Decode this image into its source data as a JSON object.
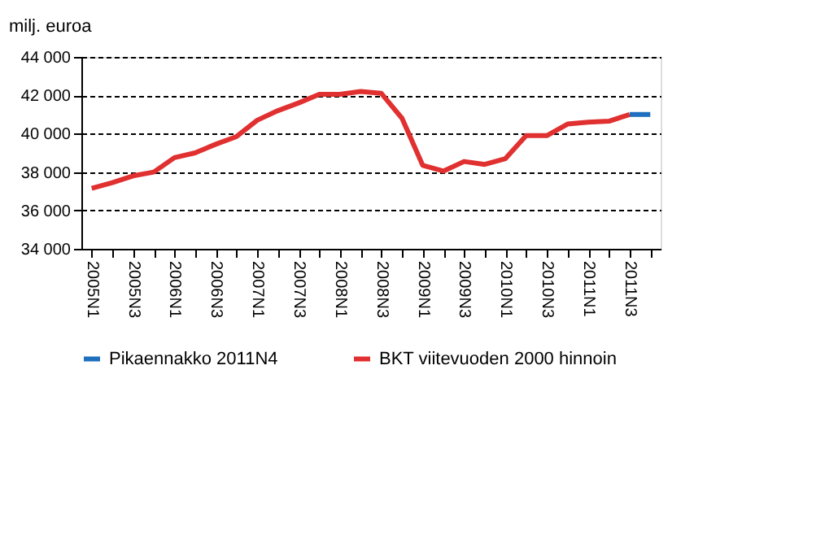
{
  "chart_data": {
    "type": "line",
    "ylabel": "milj. euroa",
    "categories": [
      "2005N1",
      null,
      "2005N3",
      null,
      "2006N1",
      null,
      "2006N3",
      null,
      "2007N1",
      null,
      "2007N3",
      null,
      "2008N1",
      null,
      "2008N3",
      null,
      "2009N1",
      null,
      "2009N3",
      null,
      "2010N1",
      null,
      "2010N3",
      null,
      "2011N1",
      null,
      "2011N3",
      null
    ],
    "series": [
      {
        "name": "Pikaennakko 2011N4",
        "color": "#1f6fbf",
        "values": [
          null,
          null,
          null,
          null,
          null,
          null,
          null,
          null,
          null,
          null,
          null,
          null,
          null,
          null,
          null,
          null,
          null,
          null,
          null,
          null,
          null,
          null,
          null,
          null,
          null,
          null,
          41000,
          41000
        ]
      },
      {
        "name": "BKT viitevuoden 2000 hinnoin",
        "color": "#e03030",
        "values": [
          37150,
          37450,
          37800,
          38000,
          38750,
          39000,
          39450,
          39850,
          40700,
          41200,
          41600,
          42050,
          42050,
          42200,
          42100,
          40800,
          38350,
          38050,
          38550,
          38400,
          38700,
          39900,
          39900,
          40500,
          40600,
          40650,
          41000,
          null
        ]
      }
    ],
    "ylim": [
      34000,
      44000
    ],
    "yticks": [
      {
        "value": 34000,
        "label": "34 000"
      },
      {
        "value": 36000,
        "label": "36 000"
      },
      {
        "value": 38000,
        "label": "38 000"
      },
      {
        "value": 40000,
        "label": "40 000"
      },
      {
        "value": 42000,
        "label": "42 000"
      },
      {
        "value": 44000,
        "label": "44 000"
      }
    ],
    "grid": "y",
    "legend": "bottom",
    "line_style": "solid",
    "marker": "none"
  }
}
